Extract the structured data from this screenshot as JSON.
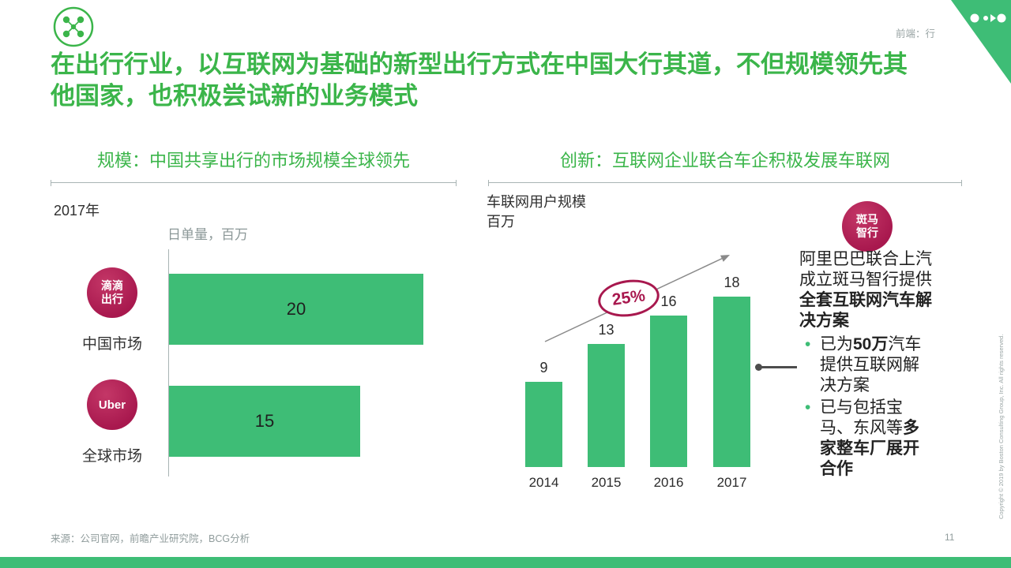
{
  "slide": {
    "header_note": "前端：行",
    "title_line1": "在出行行业，以互联网为基础的新型出行方式在中国大行其道，不但规模领先其",
    "title_line2": "他国家，也积极尝试新的业务模式",
    "source": "来源：公司官网，前瞻产业研究院，BCG分析",
    "page_number": "11",
    "copyright": "Copyright © 2019 by Boston Consulting Group, Inc. All rights reserved."
  },
  "colors": {
    "green_text": "#3bb54a",
    "green_fill": "#3ebd76",
    "crimson": "#a8184e",
    "gray_text": "#909c9c"
  },
  "left_panel": {
    "heading": "规模：中国共享出行的市场规模全球领先",
    "year": "2017年",
    "unit_label": "日单量，百万",
    "rows": [
      {
        "badge_line1": "滴滴",
        "badge_line2": "出行",
        "label": "中国市场"
      },
      {
        "badge_line1": "Uber",
        "badge_line2": "",
        "label": "全球市场"
      }
    ]
  },
  "right_panel": {
    "heading": "创新：互联网企业联合车企积极发展车联网",
    "chart_title": "车联网用户规模",
    "chart_unit": "百万",
    "growth_label": "25%",
    "badge_line1": "斑马",
    "badge_line2": "智行",
    "annotation": {
      "intro_normal": "阿里巴巴联合上汽成立斑马智行提供",
      "intro_bold": "全套互联网汽车解决方案",
      "bullets": [
        {
          "pre": "已为",
          "bold": "50万",
          "post": "汽车提供互联网解决方案"
        },
        {
          "pre": "已与包括宝马、东风等",
          "bold": "多家整车厂展开合作",
          "post": ""
        }
      ]
    }
  },
  "chart_data": [
    {
      "type": "bar",
      "orientation": "horizontal",
      "title": "规模：中国共享出行的市场规模全球领先",
      "subtitle": "2017年",
      "value_axis_label": "日单量，百万",
      "categories": [
        "中国市场（滴滴出行）",
        "全球市场（Uber）"
      ],
      "values": [
        20,
        15
      ],
      "xlim": [
        0,
        22
      ],
      "grid": false
    },
    {
      "type": "bar",
      "orientation": "vertical",
      "title": "创新：互联网企业联合车企积极发展车联网",
      "ylabel": "车联网用户规模，百万",
      "categories": [
        "2014",
        "2015",
        "2016",
        "2017"
      ],
      "values": [
        9,
        13,
        16,
        18
      ],
      "ylim": [
        0,
        20
      ],
      "grid": false,
      "annotations": [
        "25%"
      ]
    }
  ]
}
